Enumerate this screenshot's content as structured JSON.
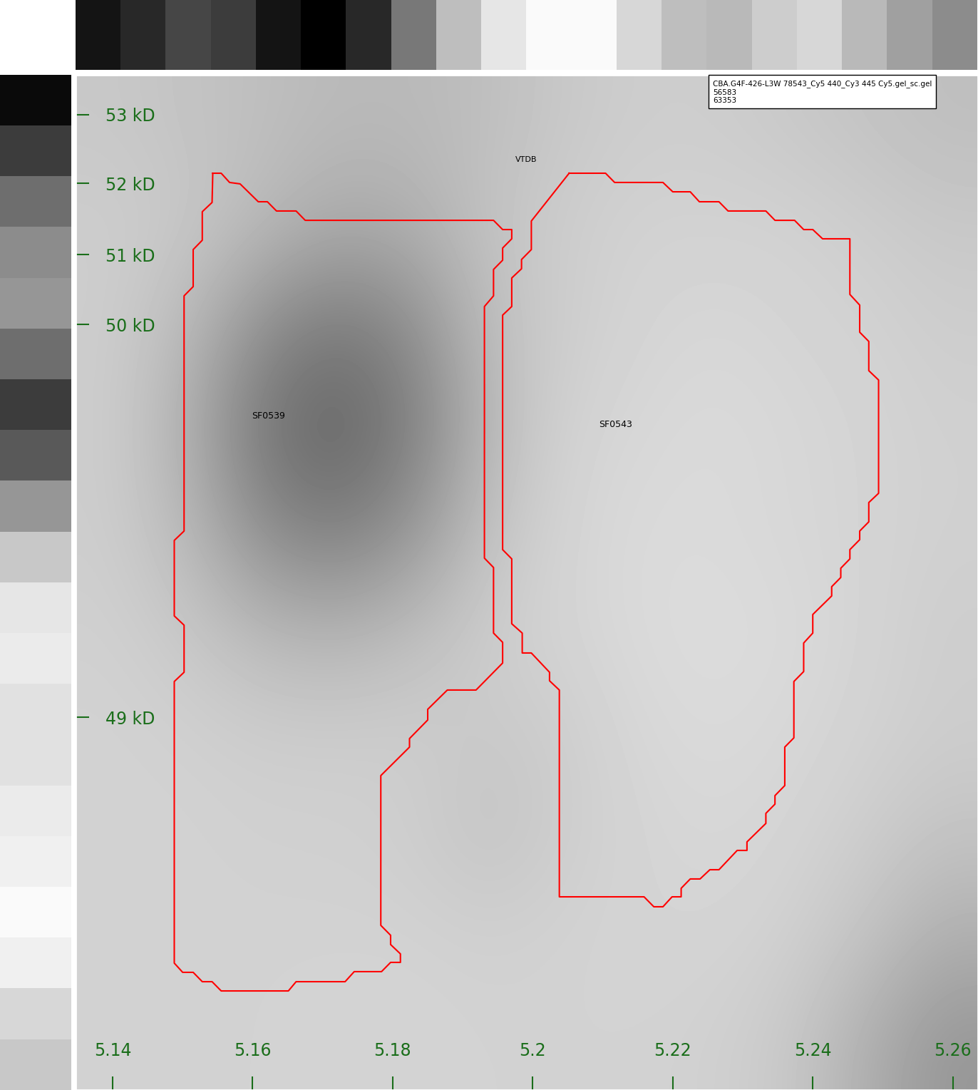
{
  "chart_data": {
    "type": "heatmap",
    "xlim": [
      5.1347,
      5.2636
    ],
    "xticks": [
      5.14,
      5.16,
      5.18,
      5.2,
      5.22,
      5.24,
      5.26
    ],
    "ylim": [
      100,
      0
    ],
    "yticks": [
      {
        "value": 3.9,
        "label": "53 kD"
      },
      {
        "value": 10.7,
        "label": "52 kD"
      },
      {
        "value": 17.7,
        "label": "51 kD"
      },
      {
        "value": 24.6,
        "label": "50 kD"
      },
      {
        "value": 63.3,
        "label": "49 kD"
      }
    ],
    "cell_range": [
      0,
      255
    ],
    "cells": [
      [
        200,
        195,
        190,
        185,
        185,
        190,
        200,
        205,
        205,
        200,
        195,
        190
      ],
      [
        205,
        200,
        185,
        170,
        175,
        195,
        205,
        210,
        210,
        210,
        205,
        200
      ],
      [
        205,
        185,
        140,
        120,
        140,
        190,
        205,
        212,
        215,
        212,
        210,
        205
      ],
      [
        205,
        175,
        115,
        100,
        125,
        185,
        210,
        215,
        218,
        215,
        212,
        208
      ],
      [
        205,
        185,
        140,
        125,
        150,
        195,
        212,
        218,
        218,
        215,
        212,
        208
      ],
      [
        208,
        200,
        185,
        180,
        190,
        205,
        212,
        218,
        220,
        218,
        212,
        205
      ],
      [
        210,
        208,
        205,
        205,
        205,
        200,
        205,
        215,
        218,
        215,
        210,
        205
      ],
      [
        210,
        210,
        208,
        208,
        205,
        195,
        205,
        212,
        215,
        212,
        205,
        195
      ],
      [
        210,
        210,
        210,
        210,
        210,
        208,
        210,
        212,
        212,
        208,
        195,
        175
      ],
      [
        210,
        210,
        210,
        212,
        212,
        210,
        210,
        210,
        208,
        200,
        175,
        150
      ]
    ],
    "top_profile": [
      20,
      40,
      70,
      60,
      20,
      0,
      40,
      120,
      190,
      230,
      250,
      250,
      215,
      190,
      185,
      205,
      215,
      185,
      160,
      140
    ],
    "left_profile": [
      10,
      60,
      110,
      140,
      150,
      110,
      60,
      90,
      150,
      200,
      230,
      235,
      225,
      225,
      235,
      240,
      250,
      240,
      215,
      200
    ],
    "series": [
      {
        "name": "SF0539",
        "color": "#ff0000",
        "label_x": 5.1622,
        "label_y": 33.57,
        "x": [
          5.1543,
          5.1555,
          5.1567,
          5.1582,
          5.1608,
          5.1621,
          5.1634,
          5.1662,
          5.1675,
          5.1944,
          5.1957,
          5.197,
          5.197,
          5.1957,
          5.1957,
          5.1944,
          5.1944,
          5.1931,
          5.1931,
          5.1944,
          5.1944,
          5.1957,
          5.1957,
          5.1919,
          5.1878,
          5.185,
          5.185,
          5.1824,
          5.1824,
          5.1783,
          5.1783,
          5.1797,
          5.1797,
          5.1811,
          5.1811,
          5.1797,
          5.1784,
          5.1745,
          5.1732,
          5.1662,
          5.1651,
          5.1555,
          5.1542,
          5.1528,
          5.1515,
          5.15,
          5.1488,
          5.1488,
          5.1502,
          5.1502,
          5.1488,
          5.1488,
          5.1502,
          5.1502,
          5.1515,
          5.1515,
          5.1528,
          5.1528,
          5.1542
        ],
        "y": [
          9.69,
          9.69,
          10.6,
          10.74,
          12.5,
          12.5,
          13.41,
          13.41,
          14.33,
          14.33,
          15.24,
          15.24,
          16.15,
          17.06,
          18.26,
          19.17,
          21.77,
          22.82,
          47.61,
          48.53,
          54.99,
          55.9,
          57.94,
          60.6,
          60.6,
          62.5,
          63.55,
          65.38,
          66.22,
          69.03,
          83.78,
          84.76,
          85.67,
          86.59,
          87.43,
          87.43,
          88.34,
          88.34,
          89.33,
          89.33,
          90.24,
          90.24,
          89.33,
          89.33,
          88.41,
          88.41,
          87.5,
          59.76,
          58.85,
          54.21,
          53.3,
          45.86,
          44.94,
          21.77,
          20.86,
          17.21,
          16.29,
          13.48,
          12.57
        ]
      },
      {
        "name": "SF0543",
        "color": "#ff0000",
        "label_x": 5.2118,
        "label_y": 34.48,
        "x": [
          5.2052,
          5.2104,
          5.2117,
          5.2186,
          5.22,
          5.2225,
          5.2238,
          5.2266,
          5.2279,
          5.2333,
          5.2346,
          5.2374,
          5.2387,
          5.24,
          5.2414,
          5.2453,
          5.2453,
          5.2467,
          5.2467,
          5.248,
          5.248,
          5.2494,
          5.2494,
          5.248,
          5.248,
          5.2467,
          5.2467,
          5.2453,
          5.2453,
          5.244,
          5.244,
          5.2427,
          5.2427,
          5.24,
          5.24,
          5.2387,
          5.2387,
          5.2373,
          5.2373,
          5.236,
          5.236,
          5.2346,
          5.2346,
          5.2333,
          5.2333,
          5.2306,
          5.2306,
          5.2292,
          5.2266,
          5.2253,
          5.2239,
          5.2225,
          5.2212,
          5.2212,
          5.2199,
          5.2186,
          5.2173,
          5.2159,
          5.2038,
          5.2038,
          5.2024,
          5.2024,
          5.1998,
          5.1985,
          5.1985,
          5.197,
          5.197,
          5.1957,
          5.1957,
          5.197,
          5.197,
          5.1984,
          5.1984,
          5.1998,
          5.1998
        ],
        "y": [
          9.69,
          9.69,
          10.6,
          10.6,
          11.52,
          11.52,
          12.5,
          12.5,
          13.41,
          13.41,
          14.33,
          14.33,
          15.24,
          15.24,
          16.15,
          16.15,
          21.63,
          22.68,
          25.35,
          26.26,
          29.14,
          30.06,
          41.22,
          42.13,
          44.03,
          44.94,
          45.79,
          46.77,
          47.68,
          48.6,
          49.51,
          50.42,
          51.33,
          53.16,
          54.99,
          55.97,
          58.78,
          59.76,
          65.31,
          66.22,
          70.01,
          71.0,
          71.84,
          72.75,
          73.74,
          75.56,
          76.4,
          76.4,
          78.3,
          78.3,
          79.21,
          79.21,
          80.13,
          80.97,
          80.97,
          81.95,
          81.95,
          80.97,
          80.97,
          60.6,
          59.69,
          58.85,
          56.95,
          56.95,
          54.99,
          54.07,
          47.68,
          46.77,
          23.67,
          22.82,
          20.01,
          19.1,
          18.19,
          17.21,
          14.4
        ]
      }
    ],
    "annotations": [
      {
        "text": "VTDB",
        "x": 5.1991,
        "y": 8.36
      }
    ],
    "info_box": [
      "CBA.G4F-426-L3W 78543_Cy5 440_Cy3 445 Cy5.gel_sc.gel",
      "56583",
      "63353"
    ]
  }
}
